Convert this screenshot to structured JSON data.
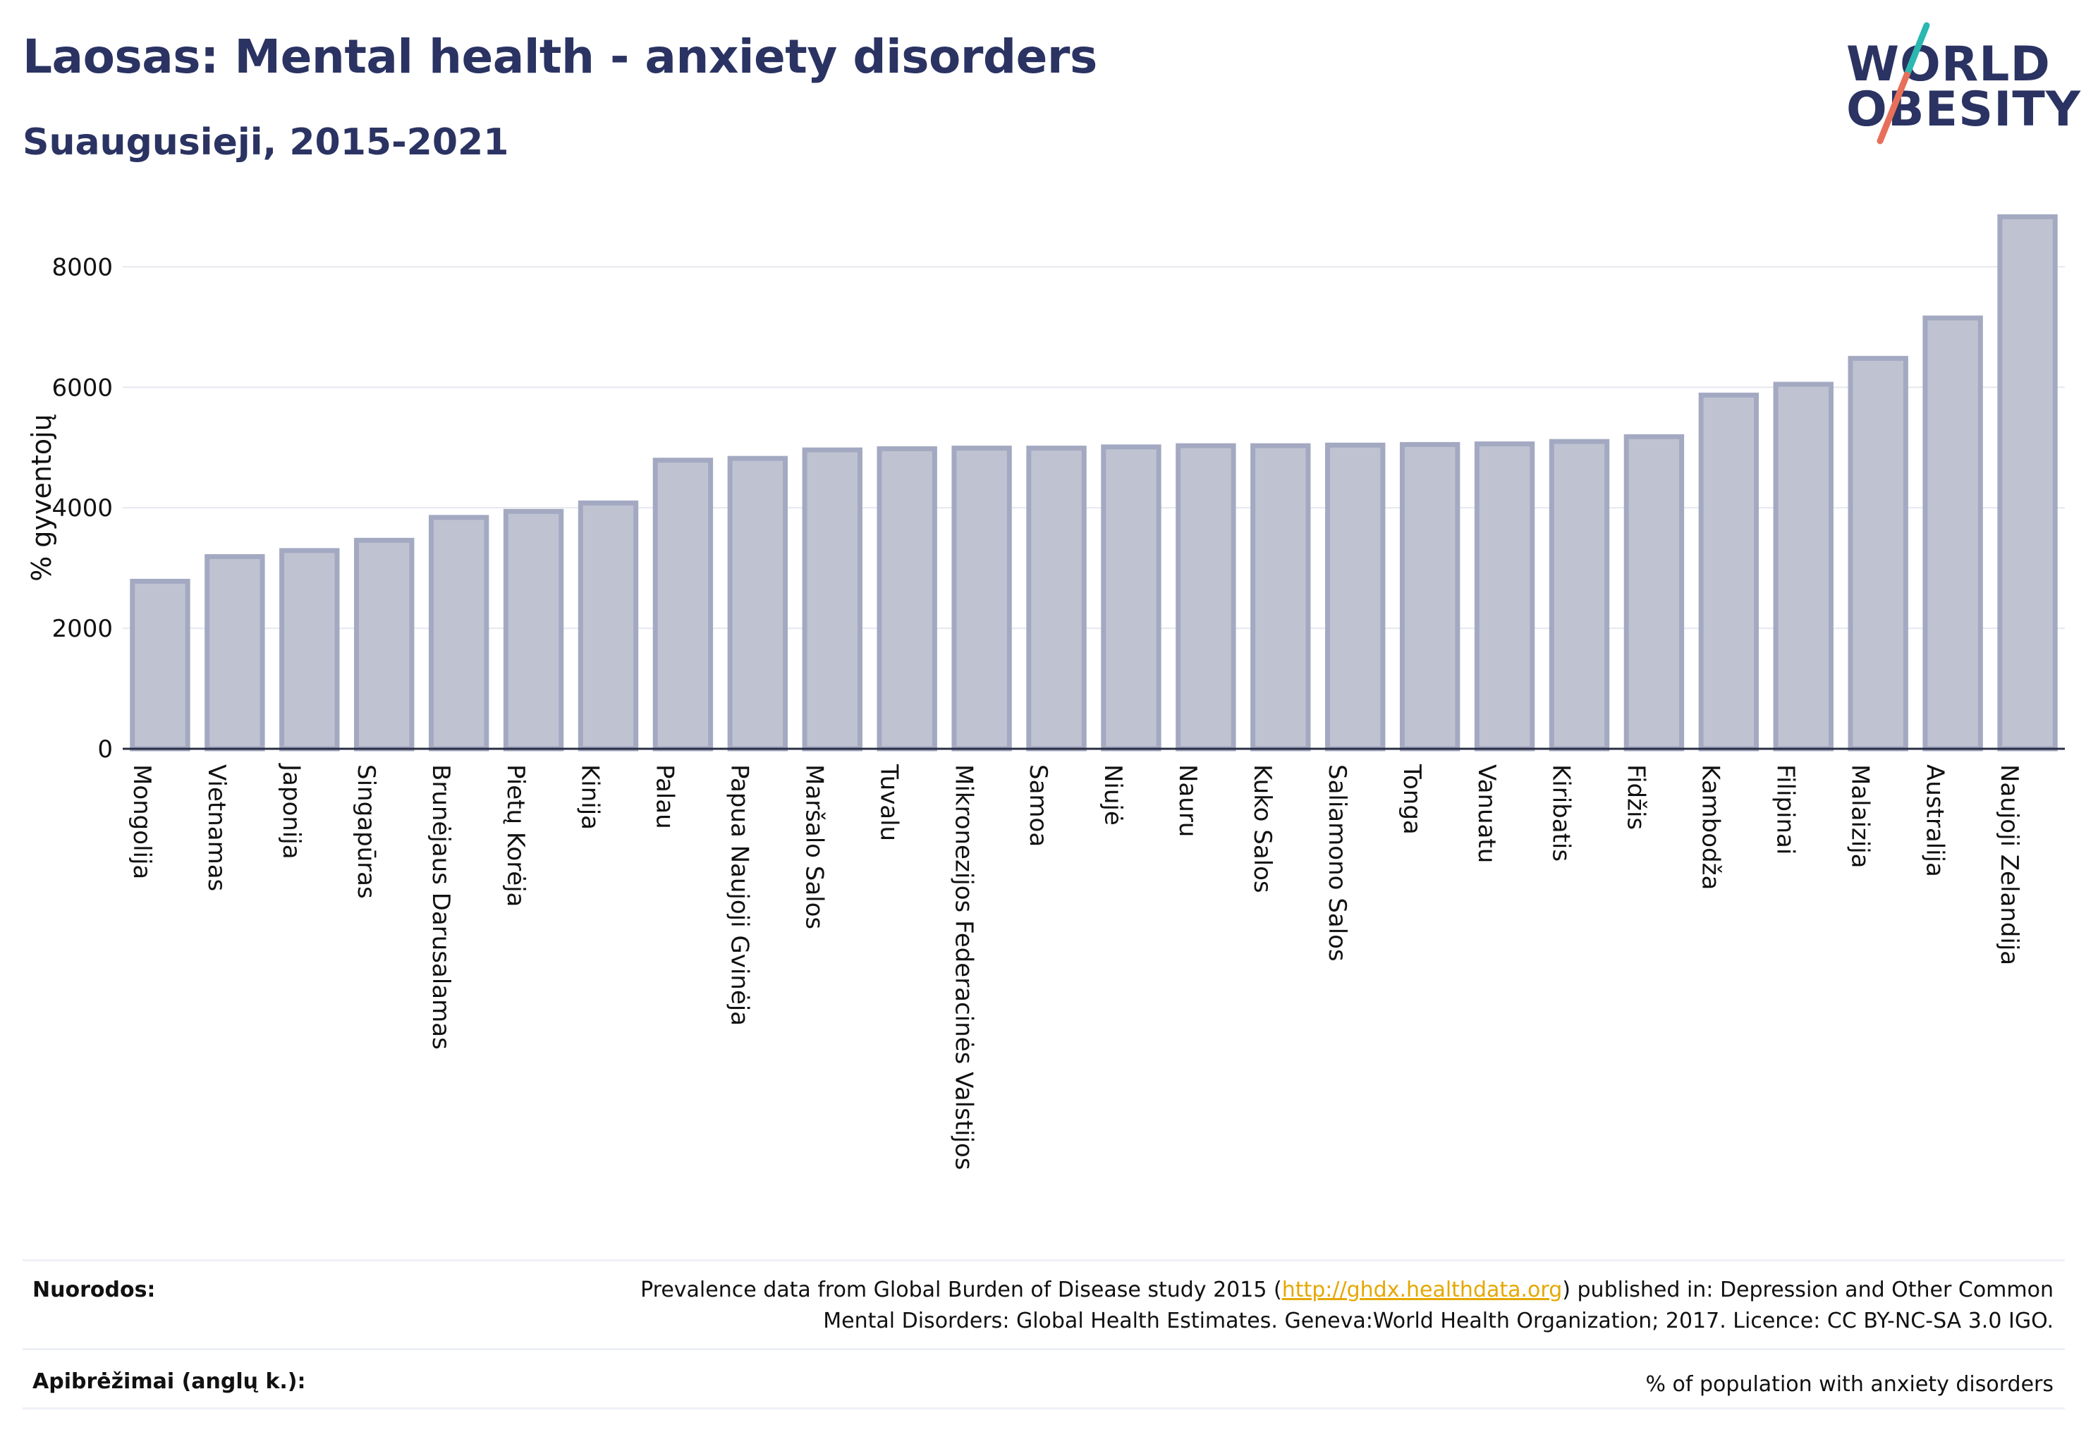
{
  "header": {
    "title": "Laosas: Mental health - anxiety disorders",
    "subtitle": "Suaugusieji, 2015-2021"
  },
  "logo": {
    "line1": "WORLD",
    "line2": "OBESITY",
    "colors": {
      "text": "#2a3362",
      "slash_top": "#2bb8b0",
      "slash_bottom": "#e8705a"
    }
  },
  "chart_data": {
    "type": "bar",
    "ylabel": "% gyventojų",
    "xlabel": "",
    "ylim": [
      0,
      8800
    ],
    "yticks": [
      0,
      2000,
      4000,
      6000,
      8000
    ],
    "grid": true,
    "bar_fill": "#bfc3d1",
    "bar_stroke": "#a4a9c2",
    "categories": [
      "Mongolija",
      "Vietnamas",
      "Japonija",
      "Singapūras",
      "Brunėjaus Darusalamas",
      "Pietų Korėja",
      "Kinija",
      "Palau",
      "Papua Naujoji Gvinėja",
      "Maršalo Salos",
      "Tuvalu",
      "Mikronezijos Federacinės Valstijos",
      "Samoa",
      "Niujė",
      "Nauru",
      "Kuko Salos",
      "Saliamono Salos",
      "Tonga",
      "Vanuatu",
      "Kiribatis",
      "Fidžis",
      "Kambodža",
      "Filipinai",
      "Malaizija",
      "Australija",
      "Naujoji Zelandija"
    ],
    "values": [
      2780,
      3190,
      3290,
      3460,
      3840,
      3940,
      4080,
      4790,
      4820,
      4960,
      4980,
      4990,
      4990,
      5010,
      5030,
      5030,
      5040,
      5050,
      5060,
      5100,
      5180,
      5870,
      6050,
      6480,
      7150,
      8830
    ]
  },
  "footer": {
    "sources_label": "Nuorodos:",
    "sources_pre": "Prevalence data from Global Burden of Disease study 2015 (",
    "sources_link": "http://ghdx.healthdata.org",
    "sources_post": ") published in: Depression and Other Common",
    "sources_line2": "Mental Disorders: Global Health Estimates. Geneva:World Health Organization; 2017. Licence: CC BY-NC-SA 3.0 IGO.",
    "definitions_label": "Apibrėžimai (anglų k.):",
    "definitions_text": "% of population with anxiety disorders"
  }
}
